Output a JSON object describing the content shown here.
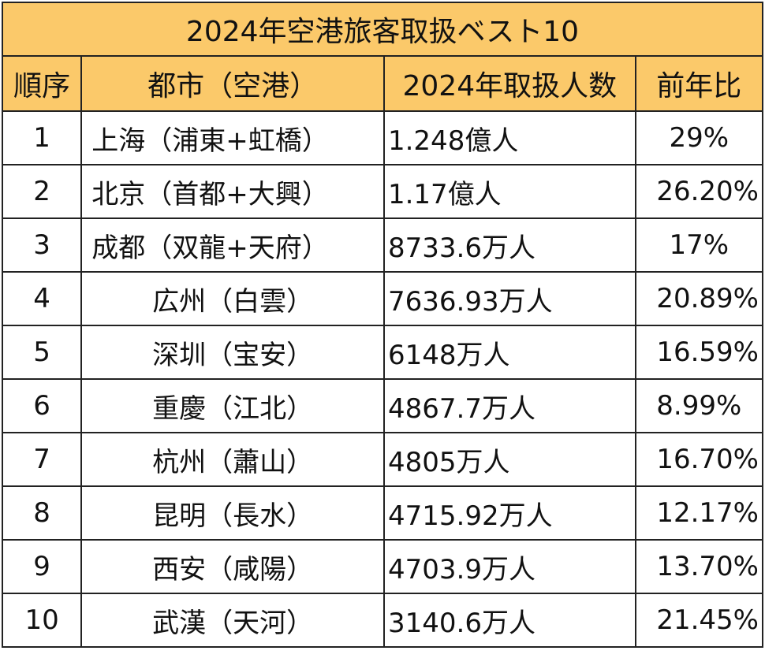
{
  "title": "2024年空港旅客取扱ベスト10",
  "colors": {
    "header_background": "#fbc96a",
    "border": "#222222",
    "text": "#111111"
  },
  "columns": {
    "rank": "順序",
    "city": "都市（空港）",
    "count": "2024年取扱人数",
    "ratio": "前年比"
  },
  "rows": [
    {
      "rank": "1",
      "city": "上海（浦東+虹橋）",
      "count": "1.248億人",
      "ratio": "29%"
    },
    {
      "rank": "2",
      "city": "北京（首都+大興）",
      "count": "1.17億人",
      "ratio": "26.20%"
    },
    {
      "rank": "3",
      "city": "成都（双龍+天府）",
      "count": "8733.6万人",
      "ratio": "17%"
    },
    {
      "rank": "4",
      "city": "広州（白雲）",
      "count": "7636.93万人",
      "ratio": "20.89%"
    },
    {
      "rank": "5",
      "city": "深圳（宝安）",
      "count": "6148万人",
      "ratio": "16.59%"
    },
    {
      "rank": "6",
      "city": "重慶（江北）",
      "count": "4867.7万人",
      "ratio": "8.99%"
    },
    {
      "rank": "7",
      "city": "杭州（蕭山）",
      "count": "4805万人",
      "ratio": "16.70%"
    },
    {
      "rank": "8",
      "city": "昆明（長水）",
      "count": "4715.92万人",
      "ratio": "12.17%"
    },
    {
      "rank": "9",
      "city": "西安（咸陽）",
      "count": "4703.9万人",
      "ratio": "13.70%"
    },
    {
      "rank": "10",
      "city": "武漢（天河）",
      "count": "3140.6万人",
      "ratio": "21.45%"
    }
  ]
}
